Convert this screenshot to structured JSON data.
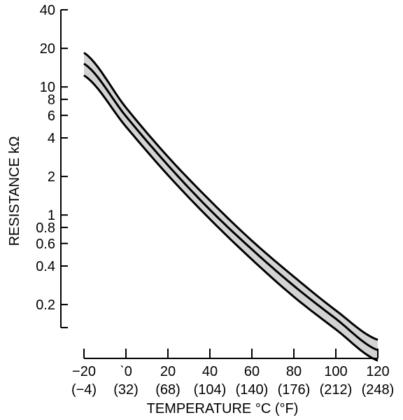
{
  "chart_data": {
    "type": "line",
    "title": "",
    "xlabel": "TEMPERATURE °C (°F)",
    "ylabel": "RESISTANCE kΩ",
    "y_scale": "log",
    "xlim": [
      -20,
      120
    ],
    "ylim": [
      0.1,
      40
    ],
    "x_ticks": [
      -20,
      0,
      20,
      40,
      60,
      80,
      100,
      120
    ],
    "x_tick_labels": [
      "−20",
      "ˋ0",
      "20",
      "40",
      "60",
      "80",
      "100",
      "120"
    ],
    "x_tick_labels_secondary": [
      "(−4)",
      "(32)",
      "(68)",
      "(104)",
      "(140)",
      "(176)",
      "(212)",
      "(248)"
    ],
    "y_ticks": [
      0.2,
      0.4,
      0.6,
      0.8,
      1,
      2,
      4,
      6,
      8,
      10,
      20,
      40
    ],
    "y_tick_labels": [
      "0.2",
      "0.4",
      "0.6",
      "0.8",
      "1",
      "2",
      "4",
      "6",
      "8",
      "10",
      "20",
      "40"
    ],
    "shaded_band": "between upper and lower curves",
    "colors": {
      "line": "#000000",
      "band": "#d3d3d3"
    },
    "series": [
      {
        "x": [
          -20,
          0,
          20,
          40,
          60,
          80,
          100,
          120
        ],
        "values": [
          18.5,
          6.9,
          2.85,
          1.3,
          0.63,
          0.33,
          0.18,
          0.106
        ]
      },
      {
        "x": [
          -20,
          0,
          20,
          40,
          60,
          80,
          100,
          120
        ],
        "values": [
          15.2,
          5.9,
          2.45,
          1.1,
          0.54,
          0.28,
          0.155,
          0.088
        ]
      },
      {
        "x": [
          -20,
          0,
          20,
          40,
          60,
          80,
          100,
          120
        ],
        "values": [
          12.3,
          4.9,
          2.05,
          0.93,
          0.45,
          0.23,
          0.128,
          0.073
        ]
      }
    ]
  }
}
